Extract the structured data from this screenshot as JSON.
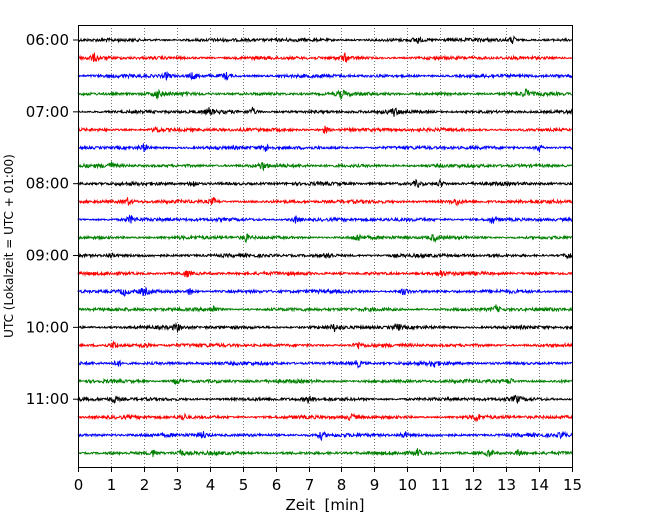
{
  "chart_data": {
    "type": "line",
    "title": "",
    "xlabel": "Zeit  [min]",
    "ylabel": "UTC (Lokalzeit = UTC + 01:00)",
    "xlim": [
      0,
      15
    ],
    "x_ticks": [
      "0",
      "1",
      "2",
      "3",
      "4",
      "5",
      "6",
      "7",
      "8",
      "9",
      "10",
      "11",
      "12",
      "13",
      "14",
      "15"
    ],
    "y_tick_labels": [
      "06:00",
      "07:00",
      "08:00",
      "09:00",
      "10:00",
      "11:00"
    ],
    "grid": "vertical dotted at each minute",
    "trace_interval_min": 15,
    "colors": [
      "#000000",
      "#ff0000",
      "#0000ff",
      "#008000"
    ],
    "traces": [
      {
        "start": "06:00",
        "events": [
          10.3,
          13.2
        ]
      },
      {
        "start": "06:15",
        "events": [
          0.5,
          8.1
        ]
      },
      {
        "start": "06:30",
        "events": [
          2.7,
          3.5,
          4.5
        ]
      },
      {
        "start": "06:45",
        "events": [
          2.4,
          8.0,
          13.6
        ]
      },
      {
        "start": "07:00",
        "events": [
          4.0,
          5.3,
          9.6
        ]
      },
      {
        "start": "07:15",
        "events": [
          2.4,
          7.5
        ]
      },
      {
        "start": "07:30",
        "events": [
          2.0,
          5.7,
          14.0
        ]
      },
      {
        "start": "07:45",
        "events": [
          1.0,
          5.6
        ]
      },
      {
        "start": "08:00",
        "events": [
          3.5,
          10.3,
          11.0
        ]
      },
      {
        "start": "08:15",
        "events": [
          1.5,
          4.1,
          11.5
        ]
      },
      {
        "start": "08:30",
        "events": [
          1.6,
          6.6,
          12.6
        ]
      },
      {
        "start": "08:45",
        "events": [
          5.1,
          8.5,
          10.8
        ]
      },
      {
        "start": "09:00",
        "events": [
          1.0,
          7.6,
          14.9
        ]
      },
      {
        "start": "09:15",
        "events": [
          3.3,
          11.0
        ]
      },
      {
        "start": "09:30",
        "events": [
          1.4,
          2.0,
          3.4,
          9.9
        ]
      },
      {
        "start": "09:45",
        "events": [
          4.1,
          12.7
        ]
      },
      {
        "start": "10:00",
        "events": [
          3.0,
          7.8,
          9.7
        ]
      },
      {
        "start": "10:15",
        "events": [
          1.1,
          2.0,
          8.5
        ]
      },
      {
        "start": "10:30",
        "events": [
          1.2,
          8.5,
          10.8
        ]
      },
      {
        "start": "10:45",
        "events": [
          3.0,
          13.1
        ]
      },
      {
        "start": "11:00",
        "events": [
          1.1,
          7.0,
          13.3
        ]
      },
      {
        "start": "11:15",
        "events": [
          3.2,
          8.3,
          12.1
        ]
      },
      {
        "start": "11:30",
        "events": [
          3.8,
          7.4,
          9.9,
          14.7
        ]
      },
      {
        "start": "11:45",
        "events": [
          2.3,
          3.1,
          10.3,
          12.5,
          13.4
        ]
      }
    ]
  }
}
